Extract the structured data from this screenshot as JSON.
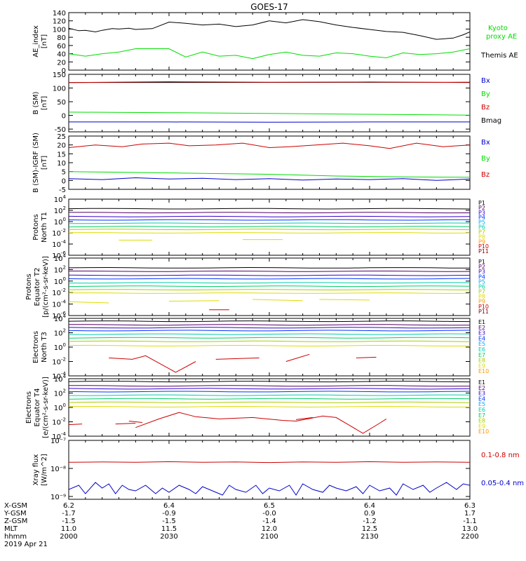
{
  "title": "GOES-17",
  "colors": {
    "black": "#000000",
    "green": "#00dd00",
    "red": "#cc0000",
    "blue": "#0000cc",
    "p": [
      "#000000",
      "#550066",
      "#3300cc",
      "#0033ff",
      "#00aaff",
      "#00ccaa",
      "#00cc66",
      "#aacc00",
      "#dddd00",
      "#ff9900",
      "#cc0000",
      "#880000"
    ],
    "e": [
      "#000000",
      "#550066",
      "#3300cc",
      "#0033ff",
      "#00aaff",
      "#00ccaa",
      "#00cc66",
      "#aacc00",
      "#dddd00",
      "#ff9900",
      "#cc0000"
    ]
  },
  "chart_data": [
    {
      "type": "line",
      "id": "ae",
      "ylabel": [
        "AE_index",
        "[nT]"
      ],
      "yticks": [
        "140",
        "120",
        "100",
        "80",
        "60",
        "40",
        "20",
        "0"
      ],
      "ylim": [
        0,
        140
      ],
      "legend": [
        {
          "label": "Kyoto",
          "color": "#00dd00"
        },
        {
          "label": "proxy AE",
          "color": "#00dd00"
        },
        {
          "label": "Themis AE",
          "color": "#000000"
        }
      ],
      "series": [
        {
          "color": "#000000",
          "x": [
            0,
            3,
            5,
            8,
            10,
            13,
            15,
            18,
            20,
            25,
            30,
            35,
            40,
            45,
            50,
            55,
            60,
            65,
            70,
            75,
            80,
            85,
            90,
            95,
            100,
            105,
            110,
            115,
            118,
            120
          ],
          "y": [
            102,
            96,
            97,
            93,
            97,
            101,
            100,
            102,
            99,
            101,
            117,
            114,
            110,
            112,
            106,
            110,
            120,
            115,
            123,
            118,
            110,
            104,
            99,
            94,
            92,
            84,
            75,
            78,
            86,
            93
          ]
        },
        {
          "color": "#00dd00",
          "x": [
            0,
            5,
            10,
            15,
            20,
            25,
            30,
            35,
            40,
            45,
            50,
            55,
            60,
            65,
            70,
            75,
            80,
            85,
            90,
            95,
            100,
            105,
            110,
            115,
            120
          ],
          "y": [
            40,
            34,
            40,
            44,
            52,
            52,
            52,
            32,
            44,
            34,
            36,
            28,
            38,
            44,
            36,
            34,
            42,
            40,
            34,
            30,
            42,
            38,
            40,
            44,
            52
          ]
        }
      ]
    },
    {
      "type": "line",
      "id": "bsm",
      "ylabel": [
        "B (SM)",
        "[nT]"
      ],
      "yticks": [
        "150",
        "100",
        "50",
        "0",
        "-50"
      ],
      "ylim": [
        -60,
        150
      ],
      "legend": [
        {
          "label": "Bx",
          "color": "#0000cc"
        },
        {
          "label": "By",
          "color": "#00dd00"
        },
        {
          "label": "Bz",
          "color": "#cc0000"
        },
        {
          "label": "Bmag",
          "color": "#000000"
        }
      ],
      "series": [
        {
          "color": "#000000",
          "x": [
            0,
            120
          ],
          "y": [
            120,
            121
          ]
        },
        {
          "color": "#cc0000",
          "x": [
            0,
            30,
            60,
            90,
            120
          ],
          "y": [
            120,
            123,
            121,
            122,
            120
          ]
        },
        {
          "color": "#00dd00",
          "x": [
            0,
            30,
            60,
            90,
            120
          ],
          "y": [
            12,
            10,
            7,
            4,
            1
          ]
        },
        {
          "color": "#0000cc",
          "x": [
            0,
            30,
            60,
            90,
            120
          ],
          "y": [
            -24,
            -24,
            -25,
            -24,
            -24
          ]
        }
      ]
    },
    {
      "type": "line",
      "id": "bigrf",
      "ylabel": [
        "B (SM)-IGRF (SM)",
        "[nT]"
      ],
      "yticks": [
        "25",
        "20",
        "15",
        "10",
        "5",
        "0",
        "-5"
      ],
      "ylim": [
        -5,
        25
      ],
      "legend": [
        {
          "label": "Bx",
          "color": "#0000cc"
        },
        {
          "label": "By",
          "color": "#00dd00"
        },
        {
          "label": "Bz",
          "color": "#cc0000"
        }
      ],
      "series": [
        {
          "color": "#cc0000",
          "x": [
            0,
            8,
            16,
            22,
            30,
            36,
            44,
            52,
            60,
            66,
            74,
            82,
            90,
            96,
            104,
            112,
            120
          ],
          "y": [
            18.5,
            20,
            19,
            20.5,
            21,
            19.5,
            20,
            21,
            18.5,
            19,
            20,
            21,
            19.5,
            18,
            21,
            19,
            20
          ]
        },
        {
          "color": "#00dd00",
          "x": [
            0,
            20,
            40,
            60,
            80,
            100,
            120
          ],
          "y": [
            5,
            4.5,
            4,
            3.5,
            2.5,
            2,
            1.8
          ]
        },
        {
          "color": "#0000cc",
          "x": [
            0,
            10,
            20,
            30,
            40,
            50,
            60,
            70,
            80,
            90,
            100,
            110,
            120
          ],
          "y": [
            1,
            0.5,
            1.5,
            0.8,
            1.2,
            0.5,
            1,
            0.2,
            0.8,
            0.5,
            1,
            0,
            0.8
          ]
        }
      ]
    },
    {
      "type": "line",
      "id": "pn",
      "log": true,
      "ylabel": [
        "Protons",
        "North T1"
      ],
      "ylim": [
        -6,
        4
      ],
      "legend": [
        "P1",
        "P2",
        "P3",
        "P4",
        "P5",
        "P6",
        "P7",
        "P8",
        "P9",
        "P10",
        "P11"
      ],
      "levels": [
        2.3,
        1.6,
        0.9,
        0.3,
        -0.3,
        -0.9,
        -1.4,
        -2.0
      ],
      "fragments": [
        [
          [
            15,
            -3.3
          ],
          [
            25,
            -3.3
          ]
        ],
        [
          [
            52,
            -3.2
          ],
          [
            64,
            -3.2
          ]
        ]
      ]
    },
    {
      "type": "line",
      "id": "pe",
      "log": true,
      "ylabel": [
        "Protons",
        "Equator T2",
        "[p/(cm²-s-sr-keV)]"
      ],
      "ylim": [
        -6,
        4
      ],
      "legend": [
        "P1",
        "P2",
        "P3",
        "P4",
        "P5",
        "P6",
        "P7",
        "P8",
        "P9",
        "P10",
        "P11"
      ],
      "levels": [
        2.3,
        1.7,
        1.0,
        0.4,
        -0.3,
        -0.9,
        -1.5,
        -2.1
      ],
      "fragments": [
        [
          [
            0,
            -3.6
          ],
          [
            12,
            -3.8
          ]
        ],
        [
          [
            30,
            -3.5
          ],
          [
            45,
            -3.4
          ]
        ],
        [
          [
            55,
            -3.2
          ],
          [
            70,
            -3.4
          ]
        ],
        [
          [
            75,
            -3.2
          ],
          [
            90,
            -3.3
          ]
        ],
        [
          [
            42,
            -5.0
          ],
          [
            48,
            -5.0
          ]
        ]
      ]
    },
    {
      "type": "line",
      "id": "en",
      "log": true,
      "ylabel": [
        "Electrons",
        "North T3"
      ],
      "ylim": [
        -4,
        4
      ],
      "legend": [
        "E1",
        "E2",
        "E3",
        "E4",
        "E5",
        "E6",
        "E7",
        "E8",
        "E9",
        "E10"
      ],
      "levels": [
        3.6,
        3.1,
        2.7,
        2.3,
        1.8,
        1.3,
        0.8,
        0.2
      ],
      "fragments": [
        [
          [
            12,
            -1.5
          ],
          [
            19,
            -1.7
          ],
          [
            23,
            -1.2
          ],
          [
            32,
            -3.5
          ],
          [
            38,
            -2.0
          ]
        ],
        [
          [
            44,
            -1.7
          ],
          [
            57,
            -1.5
          ]
        ],
        [
          [
            65,
            -2.0
          ],
          [
            72,
            -1.0
          ]
        ],
        [
          [
            86,
            -1.5
          ],
          [
            92,
            -1.4
          ]
        ]
      ]
    },
    {
      "type": "line",
      "id": "ee",
      "log": true,
      "ylabel": [
        "Electrons",
        "Equator T4",
        "[e/(cm²-s-sr-keV)]"
      ],
      "ylim": [
        -4,
        4
      ],
      "legend": [
        "E1",
        "E2",
        "E3",
        "E4",
        "E5",
        "E6",
        "E7",
        "E8",
        "E9",
        "E10"
      ],
      "levels": [
        3.6,
        3.0,
        2.6,
        2.2,
        1.7,
        1.2,
        0.7,
        0.1
      ],
      "fragments": [
        [
          [
            0,
            -2.4
          ],
          [
            4,
            -2.3
          ]
        ],
        [
          [
            14,
            -2.3
          ],
          [
            20,
            -2.2
          ]
        ],
        [
          [
            20,
            -2.8
          ],
          [
            27,
            -1.6
          ],
          [
            33,
            -0.7
          ],
          [
            38,
            -1.3
          ],
          [
            45,
            -1.6
          ],
          [
            55,
            -1.4
          ],
          [
            64,
            -1.8
          ],
          [
            68,
            -1.9
          ],
          [
            76,
            -1.2
          ],
          [
            80,
            -1.4
          ],
          [
            84,
            -2.5
          ],
          [
            88,
            -3.6
          ],
          [
            93,
            -2.2
          ],
          [
            95,
            -1.6
          ]
        ],
        [
          [
            18,
            -1.9
          ],
          [
            22,
            -2.1
          ]
        ],
        [
          [
            68,
            -1.7
          ],
          [
            73,
            -1.4
          ]
        ]
      ]
    },
    {
      "type": "line",
      "id": "xray",
      "log": true,
      "ylabel": [
        "Xray flux",
        "[W/m^2]"
      ],
      "yticks": [
        "10⁻⁷",
        "10⁻⁸",
        "10⁻⁹"
      ],
      "ylim": [
        -9.1,
        -7
      ],
      "legend": [
        {
          "label": "0.1-0.8 nm",
          "color": "#cc0000"
        },
        {
          "label": "0.05-0.4 nm",
          "color": "#0000cc"
        }
      ],
      "series": [
        {
          "color": "#cc0000",
          "x": [
            0,
            10,
            20,
            30,
            40,
            50,
            60,
            70,
            80,
            90,
            100,
            110,
            120
          ],
          "y": [
            -7.78,
            -7.77,
            -7.78,
            -7.76,
            -7.78,
            -7.77,
            -7.79,
            -7.77,
            -7.78,
            -7.76,
            -7.78,
            -7.77,
            -7.78
          ]
        },
        {
          "color": "#0000cc",
          "x": [
            0,
            3,
            5,
            8,
            10,
            12,
            14,
            16,
            18,
            20,
            23,
            26,
            28,
            30,
            33,
            36,
            38,
            40,
            43,
            46,
            48,
            50,
            53,
            56,
            58,
            60,
            63,
            66,
            68,
            70,
            73,
            76,
            78,
            80,
            83,
            86,
            88,
            90,
            93,
            96,
            98,
            100,
            103,
            106,
            108,
            110,
            113,
            116,
            118,
            120
          ],
          "y": [
            -8.75,
            -8.6,
            -8.9,
            -8.5,
            -8.7,
            -8.55,
            -8.9,
            -8.6,
            -8.75,
            -8.8,
            -8.6,
            -8.9,
            -8.7,
            -8.85,
            -8.6,
            -8.75,
            -8.9,
            -8.65,
            -8.8,
            -8.95,
            -8.6,
            -8.75,
            -8.85,
            -8.6,
            -8.9,
            -8.7,
            -8.8,
            -8.6,
            -8.95,
            -8.55,
            -8.75,
            -8.85,
            -8.6,
            -8.7,
            -8.8,
            -8.65,
            -8.9,
            -8.6,
            -8.8,
            -8.7,
            -8.95,
            -8.55,
            -8.75,
            -8.6,
            -8.85,
            -8.7,
            -8.5,
            -8.75,
            -8.55,
            -8.6
          ]
        }
      ]
    }
  ],
  "axis": {
    "labels": [
      "X-GSM",
      "Y-GSM",
      "Z-GSM",
      "MLT",
      "hhmm",
      "2019 Apr 21"
    ],
    "columns": [
      {
        "x": 0,
        "vals": [
          "6.2",
          "-1.7",
          "-1.5",
          "11.0",
          "2000"
        ]
      },
      {
        "x": 30,
        "vals": [
          "6.4",
          "-0.9",
          "-1.5",
          "11.5",
          "2030"
        ]
      },
      {
        "x": 60,
        "vals": [
          "6.5",
          "-0.0",
          "-1.4",
          "12.0",
          "2100"
        ]
      },
      {
        "x": 90,
        "vals": [
          "6.4",
          "0.9",
          "-1.2",
          "12.5",
          "2130"
        ]
      },
      {
        "x": 120,
        "vals": [
          "6.3",
          "1.7",
          "-1.1",
          "13.0",
          "2200"
        ]
      }
    ]
  }
}
